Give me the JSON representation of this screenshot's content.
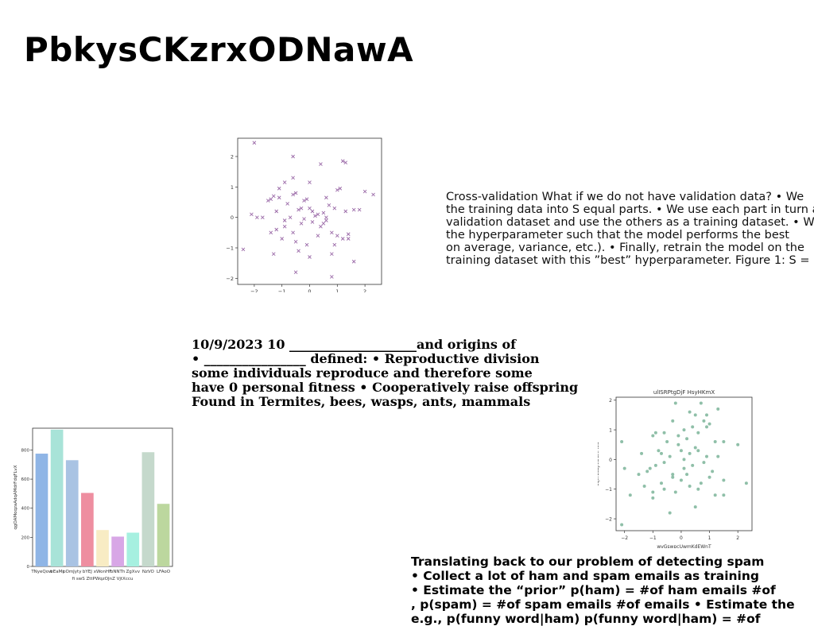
{
  "slide": {
    "title": "PbkysCKzrxODNawA"
  },
  "text_blocks": {
    "cross_validation": [
      "Cross-validation What if we do not have validation data? • We",
      "the training data into S equal parts. • We use each part in turn as",
      "validation dataset and use the others as a training dataset. • We",
      "the hyperparameter such that the model performs the best",
      "on average, variance, etc.). • Finally, retrain the model on the",
      "training dataset with this ”best” hyperparameter. Figure 1: S = 5:"
    ],
    "eusociality": [
      "10/9/2023 10 ____________________and origins of",
      "• ________________ defined: • Reproductive division",
      "some individuals reproduce and therefore some",
      "have 0 personal fitness • Cooperatively raise offspring",
      "Found in Termites, bees, wasps, ants, mammals"
    ],
    "spam": [
      "Translating back to our problem of detecting spam",
      "• Collect a lot of ham and spam emails as training",
      "• Estimate the “prior” p(ham) = #of ham emails #of",
      ", p(spam) = #of spam emails #of emails • Estimate the",
      "e.g., p(funny word|ham) p(funny word|ham) = #of"
    ]
  },
  "chart_data": [
    {
      "type": "scatter",
      "marker": "x",
      "color": "#9b6aa8",
      "title": "",
      "xlabel": "",
      "ylabel": "",
      "xlim": [
        -2.6,
        2.6
      ],
      "ylim": [
        -2.2,
        2.6
      ],
      "xticks": [
        -2,
        -1,
        0,
        1,
        2
      ],
      "yticks": [
        -2,
        -1,
        0,
        1,
        2
      ],
      "x": [
        -2.0,
        -0.6,
        0.4,
        1.2,
        1.3,
        -0.6,
        -0.9,
        -1.4,
        -1.3,
        -1.5,
        -1.1,
        -1.1,
        -0.5,
        -0.6,
        -0.2,
        0.0,
        0.6,
        1.0,
        1.1,
        2.0,
        2.3,
        -2.1,
        -1.9,
        -1.7,
        -1.2,
        -0.7,
        -0.4,
        -0.3,
        -0.1,
        0.1,
        0.3,
        0.5,
        0.7,
        0.9,
        1.3,
        1.6,
        -1.4,
        -1.2,
        -0.9,
        -0.6,
        -0.3,
        0.1,
        0.4,
        0.6,
        0.8,
        1.0,
        1.2,
        1.4,
        -1.0,
        -0.5,
        -0.1,
        0.3,
        0.9,
        1.4,
        -2.4,
        -1.3,
        -0.4,
        0.0,
        0.8,
        1.6,
        -0.5,
        0.8,
        -0.9,
        0.2,
        -0.2,
        0.5,
        1.8,
        -0.8,
        0.0,
        0.6
      ],
      "y": [
        2.45,
        2.0,
        1.75,
        1.85,
        1.8,
        1.3,
        1.15,
        0.6,
        0.7,
        0.55,
        0.95,
        0.65,
        0.8,
        0.75,
        0.55,
        1.15,
        0.65,
        0.9,
        0.95,
        0.85,
        0.75,
        0.1,
        0.0,
        0.0,
        0.2,
        0.0,
        0.25,
        0.3,
        0.6,
        0.2,
        0.1,
        0.15,
        0.4,
        0.3,
        0.2,
        0.25,
        -0.5,
        -0.4,
        -0.3,
        -0.5,
        -0.2,
        -0.15,
        -0.3,
        -0.1,
        -0.5,
        -0.6,
        -0.7,
        -0.7,
        -0.7,
        -0.8,
        -0.9,
        -0.6,
        -0.9,
        -0.55,
        -1.05,
        -1.2,
        -1.1,
        -1.3,
        -1.2,
        -1.45,
        -1.8,
        -1.95,
        -0.1,
        0.05,
        -0.05,
        -0.2,
        0.25,
        0.45,
        0.3,
        0.0
      ]
    },
    {
      "type": "scatter",
      "marker": "circle",
      "color": "#8fbfa8",
      "title": "ulISRPtgDjF HsyHKmX",
      "xlabel": "wvGswpcUwmKdEWnT",
      "ylabel": "sqvrLCzjNOCXMed",
      "xlim": [
        -2.3,
        2.5
      ],
      "ylim": [
        -2.4,
        2.1
      ],
      "xticks": [
        -2,
        -1,
        0,
        1,
        2
      ],
      "yticks": [
        -2,
        -1,
        0,
        1,
        2
      ],
      "x": [
        -0.2,
        0.7,
        0.3,
        0.9,
        1.3,
        0.5,
        0.8,
        1.0,
        -0.3,
        0.1,
        0.4,
        0.6,
        -1.0,
        -0.6,
        -0.5,
        -0.1,
        0.2,
        0.5,
        1.2,
        1.5,
        2.0,
        -2.1,
        -1.4,
        -0.8,
        -0.4,
        0.0,
        0.3,
        0.6,
        0.9,
        -1.2,
        -0.9,
        -0.6,
        -0.3,
        0.1,
        0.4,
        0.8,
        1.1,
        -2.0,
        -1.5,
        -1.1,
        -0.7,
        -0.3,
        0.0,
        0.2,
        0.7,
        1.0,
        1.5,
        2.3,
        -1.8,
        -1.3,
        -1.0,
        -0.6,
        -0.2,
        0.3,
        0.6,
        1.2,
        1.5,
        -1.0,
        -0.4,
        0.5,
        -2.1,
        -0.1,
        0.9,
        1.3,
        -0.7,
        0.1,
        -0.9
      ],
      "y": [
        1.9,
        1.9,
        1.6,
        1.1,
        1.7,
        1.5,
        1.3,
        1.2,
        1.3,
        1.0,
        1.1,
        0.9,
        0.8,
        0.9,
        0.6,
        0.5,
        0.7,
        0.4,
        0.6,
        0.6,
        0.5,
        0.6,
        0.2,
        0.3,
        0.1,
        0.3,
        0.2,
        0.3,
        0.1,
        -0.4,
        -0.2,
        -0.1,
        -0.5,
        -0.3,
        -0.2,
        -0.1,
        -0.4,
        -0.3,
        -0.5,
        -0.3,
        -0.8,
        -0.6,
        -0.7,
        -0.5,
        -0.8,
        -0.6,
        -0.7,
        -0.8,
        -1.2,
        -0.9,
        -1.1,
        -1.0,
        -1.1,
        -0.9,
        -1.0,
        -1.2,
        -1.2,
        -1.3,
        -1.8,
        -1.6,
        -2.2,
        0.8,
        1.5,
        0.1,
        0.2,
        0.0,
        0.9
      ]
    },
    {
      "type": "bar",
      "title": "",
      "xlabel": "fi swS ZttPWqzOJnZ VjtXccu",
      "ylabel": "qgOAMoqzaAdqAMdrFdqFLvX",
      "ylim": [
        0,
        950
      ],
      "yticks": [
        0,
        200,
        400,
        600,
        800
      ],
      "categories": [
        "TNyeQow",
        "bEaMi",
        "pOmJyty",
        "bYEJ",
        "xWonHF",
        "bNNTh",
        "ZgXvv",
        "NzVO",
        "LFAoO"
      ],
      "values": [
        775,
        940,
        730,
        505,
        250,
        205,
        232,
        785,
        430
      ],
      "colors": [
        "#8fb5e6",
        "#a8e3d8",
        "#a9c3e3",
        "#ee8ea0",
        "#f8ecc4",
        "#d8a7e6",
        "#a6f0e0",
        "#c5d9cc",
        "#bcd79e"
      ]
    }
  ]
}
